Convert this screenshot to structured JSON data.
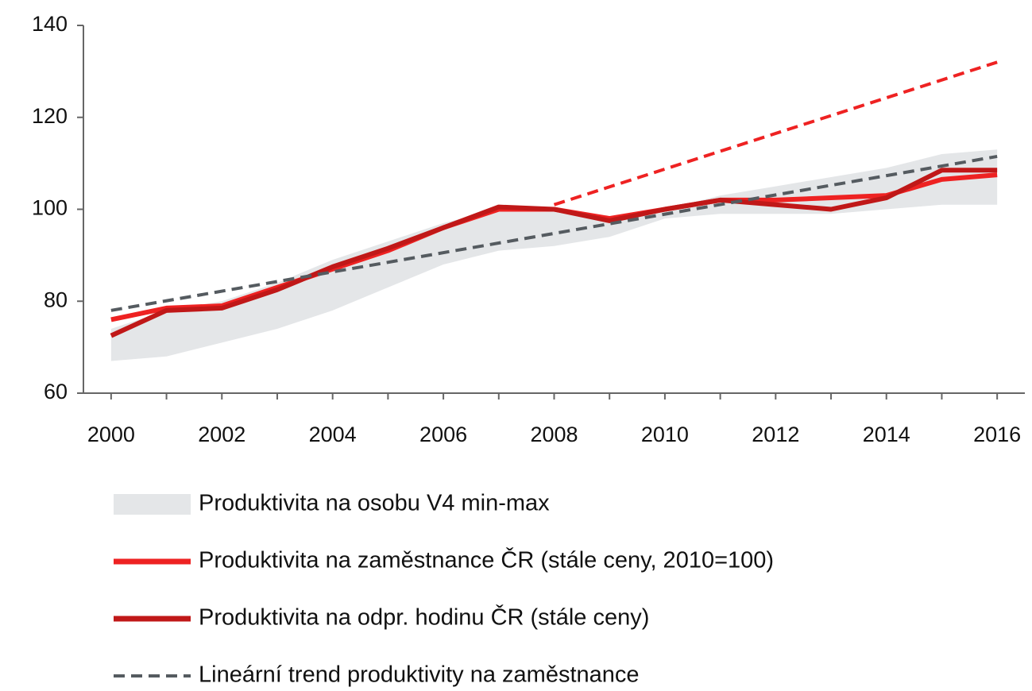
{
  "chart_data": {
    "type": "line",
    "x": [
      2000,
      2001,
      2002,
      2003,
      2004,
      2005,
      2006,
      2007,
      2008,
      2009,
      2010,
      2011,
      2012,
      2013,
      2014,
      2015,
      2016
    ],
    "xlim": [
      1999.5,
      2016.5
    ],
    "xticks": [
      2000,
      2002,
      2004,
      2006,
      2008,
      2010,
      2012,
      2014,
      2016
    ],
    "ylim": [
      60,
      140
    ],
    "yticks": [
      60,
      80,
      100,
      120,
      140
    ],
    "series": [
      {
        "name": "Produktivita na osobu V4 min-max",
        "kind": "band",
        "color": "#e4e6e8",
        "lower": [
          67,
          68,
          71,
          74,
          78,
          83,
          88,
          91,
          92,
          94,
          98,
          99,
          99,
          99,
          100,
          101,
          101
        ],
        "upper": [
          74,
          78,
          80,
          84,
          89,
          93,
          97,
          100,
          100,
          98,
          100,
          103,
          105,
          107,
          109,
          112,
          113
        ]
      },
      {
        "name": "Produktivita na zaměstnance ČR (stále ceny, 2010=100)",
        "kind": "line",
        "color": "#ee2222",
        "values": [
          76,
          78.5,
          79,
          83,
          87,
          91,
          96,
          100,
          100,
          98,
          100,
          102,
          102,
          102.5,
          103,
          106.5,
          107.5
        ]
      },
      {
        "name": "Produktivita na odpr. hodinu ČR (stále ceny)",
        "kind": "line",
        "color": "#c01818",
        "values": [
          72.5,
          78,
          78.5,
          82.5,
          87.5,
          91.5,
          96,
          100.5,
          100,
          97.5,
          100,
          102,
          101,
          100,
          102.5,
          108.5,
          108.5
        ]
      },
      {
        "name": "Lineární trend produktivity na zaměstnance",
        "kind": "dashed",
        "color": "#555b60",
        "x": [
          2000,
          2016
        ],
        "values": [
          78,
          111.5
        ]
      },
      {
        "kind": "dashed",
        "color": "#ee2222",
        "x": [
          2008,
          2016
        ],
        "values": [
          101,
          132
        ]
      }
    ]
  }
}
